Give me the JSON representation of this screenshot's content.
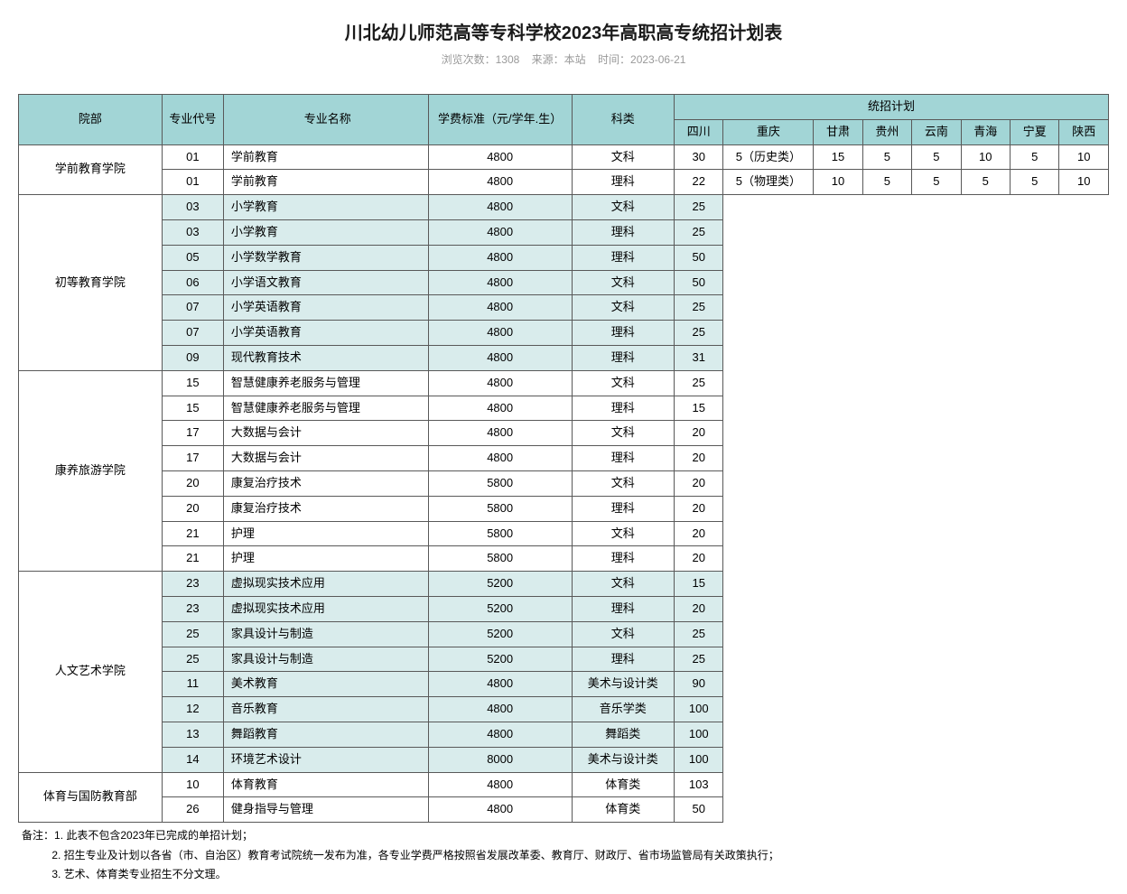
{
  "page": {
    "title": "川北幼儿师范高等专科学校2023年高职高专统招计划表",
    "meta_views_label": "浏览次数：",
    "meta_views": "1308",
    "meta_source_label": "来源：",
    "meta_source": "本站",
    "meta_time_label": "时间：",
    "meta_time": "2023-06-21"
  },
  "colors": {
    "header_bg": "#a2d5d6",
    "alt_bg": "#d9ecec",
    "border": "#595959",
    "text": "#1a1a1a",
    "meta_text": "#999999"
  },
  "headers": {
    "dept": "院部",
    "code": "专业代号",
    "major": "专业名称",
    "fee": "学费标准（元/学年.生）",
    "category": "科类",
    "plan_group": "统招计划",
    "provinces": [
      "四川",
      "重庆",
      "甘肃",
      "贵州",
      "云南",
      "青海",
      "宁夏",
      "陕西"
    ]
  },
  "groups": [
    {
      "dept": "学前教育学院",
      "alt": false,
      "rows": [
        {
          "code": "01",
          "major": "学前教育",
          "fee": "4800",
          "cat": "文科",
          "plan": [
            "30",
            "5（历史类）",
            "15",
            "5",
            "5",
            "10",
            "5",
            "10"
          ]
        },
        {
          "code": "01",
          "major": "学前教育",
          "fee": "4800",
          "cat": "理科",
          "plan": [
            "22",
            "5（物理类）",
            "10",
            "5",
            "5",
            "5",
            "5",
            "10"
          ]
        }
      ]
    },
    {
      "dept": "初等教育学院",
      "alt": true,
      "rows": [
        {
          "code": "03",
          "major": "小学教育",
          "fee": "4800",
          "cat": "文科",
          "plan": [
            "25"
          ]
        },
        {
          "code": "03",
          "major": "小学教育",
          "fee": "4800",
          "cat": "理科",
          "plan": [
            "25"
          ]
        },
        {
          "code": "05",
          "major": "小学数学教育",
          "fee": "4800",
          "cat": "理科",
          "plan": [
            "50"
          ]
        },
        {
          "code": "06",
          "major": "小学语文教育",
          "fee": "4800",
          "cat": "文科",
          "plan": [
            "50"
          ]
        },
        {
          "code": "07",
          "major": "小学英语教育",
          "fee": "4800",
          "cat": "文科",
          "plan": [
            "25"
          ]
        },
        {
          "code": "07",
          "major": "小学英语教育",
          "fee": "4800",
          "cat": "理科",
          "plan": [
            "25"
          ]
        },
        {
          "code": "09",
          "major": "现代教育技术",
          "fee": "4800",
          "cat": "理科",
          "plan": [
            "31"
          ]
        }
      ]
    },
    {
      "dept": "康养旅游学院",
      "alt": false,
      "rows": [
        {
          "code": "15",
          "major": "智慧健康养老服务与管理",
          "fee": "4800",
          "cat": "文科",
          "plan": [
            "25"
          ]
        },
        {
          "code": "15",
          "major": "智慧健康养老服务与管理",
          "fee": "4800",
          "cat": "理科",
          "plan": [
            "15"
          ]
        },
        {
          "code": "17",
          "major": "大数据与会计",
          "fee": "4800",
          "cat": "文科",
          "plan": [
            "20"
          ]
        },
        {
          "code": "17",
          "major": "大数据与会计",
          "fee": "4800",
          "cat": "理科",
          "plan": [
            "20"
          ]
        },
        {
          "code": "20",
          "major": "康复治疗技术",
          "fee": "5800",
          "cat": "文科",
          "plan": [
            "20"
          ]
        },
        {
          "code": "20",
          "major": "康复治疗技术",
          "fee": "5800",
          "cat": "理科",
          "plan": [
            "20"
          ]
        },
        {
          "code": "21",
          "major": "护理",
          "fee": "5800",
          "cat": "文科",
          "plan": [
            "20"
          ]
        },
        {
          "code": "21",
          "major": "护理",
          "fee": "5800",
          "cat": "理科",
          "plan": [
            "20"
          ]
        }
      ]
    },
    {
      "dept": "人文艺术学院",
      "alt": true,
      "rows": [
        {
          "code": "23",
          "major": "虚拟现实技术应用",
          "fee": "5200",
          "cat": "文科",
          "plan": [
            "15"
          ]
        },
        {
          "code": "23",
          "major": "虚拟现实技术应用",
          "fee": "5200",
          "cat": "理科",
          "plan": [
            "20"
          ]
        },
        {
          "code": "25",
          "major": "家具设计与制造",
          "fee": "5200",
          "cat": "文科",
          "plan": [
            "25"
          ]
        },
        {
          "code": "25",
          "major": "家具设计与制造",
          "fee": "5200",
          "cat": "理科",
          "plan": [
            "25"
          ]
        },
        {
          "code": "11",
          "major": "美术教育",
          "fee": "4800",
          "cat": "美术与设计类",
          "plan": [
            "90"
          ]
        },
        {
          "code": "12",
          "major": "音乐教育",
          "fee": "4800",
          "cat": "音乐学类",
          "plan": [
            "100"
          ]
        },
        {
          "code": "13",
          "major": "舞蹈教育",
          "fee": "4800",
          "cat": "舞蹈类",
          "plan": [
            "100"
          ]
        },
        {
          "code": "14",
          "major": "环境艺术设计",
          "fee": "8000",
          "cat": "美术与设计类",
          "plan": [
            "100"
          ]
        }
      ]
    },
    {
      "dept": "体育与国防教育部",
      "alt": false,
      "rows": [
        {
          "code": "10",
          "major": "体育教育",
          "fee": "4800",
          "cat": "体育类",
          "plan": [
            "103"
          ]
        },
        {
          "code": "26",
          "major": "健身指导与管理",
          "fee": "4800",
          "cat": "体育类",
          "plan": [
            "50"
          ]
        }
      ]
    }
  ],
  "notes": {
    "prefix": "备注：",
    "lines": [
      "1. 此表不包含2023年已完成的单招计划；",
      "2. 招生专业及计划以各省（市、自治区）教育考试院统一发布为准，各专业学费严格按照省发展改革委、教育厅、财政厅、省市场监管局有关政策执行；",
      "3. 艺术、体育类专业招生不分文理。"
    ]
  }
}
